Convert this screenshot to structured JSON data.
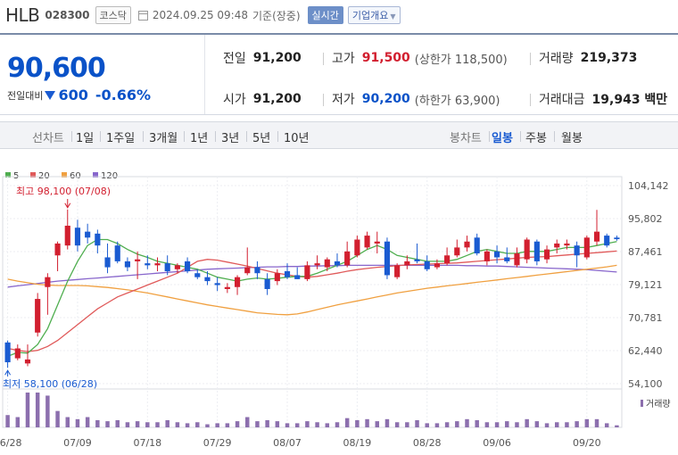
{
  "stock": {
    "name": "HLB",
    "code": "028300",
    "market": "코스닥",
    "datetime": "2024.09.25 09:48",
    "basis": "기준(장중)",
    "realtime_label": "실시간",
    "overview_label": "기업개요"
  },
  "price": {
    "current": "90,600",
    "change_label": "전일대비",
    "change_amount": "600",
    "change_pct": "-0.66%",
    "direction": "down"
  },
  "stats": {
    "prev_close_label": "전일",
    "prev_close": "91,200",
    "high_label": "고가",
    "high": "91,500",
    "upper_limit_label": "(상한가 118,500)",
    "volume_label": "거래량",
    "volume": "219,373",
    "open_label": "시가",
    "open": "91,200",
    "low_label": "저가",
    "low": "90,200",
    "lower_limit_label": "(하한가 63,900)",
    "trade_value_label": "거래대금",
    "trade_value": "19,943 백만"
  },
  "tabs": {
    "line_chart": "선차트",
    "periods": [
      "1일",
      "1주일",
      "3개월",
      "1년",
      "3년",
      "5년",
      "10년"
    ],
    "candle_chart": "봉차트",
    "candle_periods": [
      "일봉",
      "주봉",
      "월봉"
    ],
    "active_candle": "일봉"
  },
  "colors": {
    "up": "#d21f2f",
    "down": "#1a5bd1",
    "ma5": "#4fae4f",
    "ma20": "#e05a5a",
    "ma60": "#f0a040",
    "ma120": "#8866cc",
    "volume": "#8c6fae"
  },
  "chart_data": {
    "type": "candlestick",
    "legend": [
      {
        "name": "5",
        "color": "#4fae4f"
      },
      {
        "name": "20",
        "color": "#e05a5a"
      },
      {
        "name": "60",
        "color": "#f0a040"
      },
      {
        "name": "120",
        "color": "#8866cc"
      }
    ],
    "y_ticks": [
      "104,142",
      "95,802",
      "87,461",
      "79,121",
      "70,781",
      "62,440",
      "54,100"
    ],
    "y_tick_values": [
      104142,
      95802,
      87461,
      79121,
      70781,
      62440,
      54100
    ],
    "ylim": [
      54100,
      104142
    ],
    "x_ticks": [
      "06/28",
      "07/09",
      "07/18",
      "07/29",
      "08/07",
      "08/19",
      "08/28",
      "09/06",
      "09/20"
    ],
    "x_tick_index": [
      0,
      7,
      14,
      21,
      28,
      35,
      42,
      49,
      58
    ],
    "high_annotation": {
      "label": "최고 98,100 (07/08)",
      "value": 98100,
      "index": 6
    },
    "low_annotation": {
      "label": "최저 58,100 (06/28)",
      "value": 58100,
      "index": 0
    },
    "volume_label": "거래량",
    "candles": [
      [
        64500,
        65000,
        58100,
        59500
      ],
      [
        60500,
        64000,
        60000,
        63000
      ],
      [
        59200,
        64000,
        58500,
        60200
      ],
      [
        67000,
        77000,
        66000,
        75500
      ],
      [
        78500,
        82000,
        71500,
        81000
      ],
      [
        86500,
        90000,
        82500,
        89500
      ],
      [
        89000,
        98100,
        88000,
        94000
      ],
      [
        93500,
        95500,
        87500,
        89000
      ],
      [
        92500,
        94500,
        89500,
        91000
      ],
      [
        92000,
        93000,
        87000,
        89000
      ],
      [
        86000,
        89500,
        82000,
        83500
      ],
      [
        89000,
        90000,
        84500,
        85000
      ],
      [
        85000,
        86000,
        82500,
        83500
      ],
      [
        85000,
        87500,
        80500,
        85500
      ],
      [
        84500,
        86500,
        83000,
        84000
      ],
      [
        84000,
        86000,
        82500,
        84500
      ],
      [
        84500,
        86500,
        81500,
        82500
      ],
      [
        83000,
        84500,
        82000,
        84000
      ],
      [
        85000,
        86000,
        82000,
        82500
      ],
      [
        82000,
        83000,
        80500,
        81000
      ],
      [
        81000,
        82500,
        79000,
        80000
      ],
      [
        79500,
        81000,
        77500,
        79000
      ],
      [
        78000,
        79500,
        77000,
        78500
      ],
      [
        78500,
        81500,
        76500,
        81000
      ],
      [
        82000,
        88500,
        81500,
        83500
      ],
      [
        83500,
        85000,
        80500,
        82000
      ],
      [
        80500,
        82000,
        76500,
        78000
      ],
      [
        80000,
        83000,
        79000,
        82000
      ],
      [
        82500,
        84500,
        80500,
        81000
      ],
      [
        81500,
        83500,
        80500,
        80500
      ],
      [
        80500,
        85000,
        80000,
        84000
      ],
      [
        84000,
        86500,
        83000,
        84500
      ],
      [
        83500,
        86000,
        82500,
        85500
      ],
      [
        85000,
        87000,
        83500,
        84000
      ],
      [
        84000,
        90000,
        83500,
        87500
      ],
      [
        86500,
        91500,
        86000,
        90500
      ],
      [
        88500,
        92500,
        88000,
        91500
      ],
      [
        89500,
        92500,
        87000,
        90000
      ],
      [
        90000,
        91000,
        80500,
        81500
      ],
      [
        81000,
        84500,
        80500,
        84000
      ],
      [
        84000,
        86500,
        83000,
        85000
      ],
      [
        85500,
        89500,
        84500,
        85000
      ],
      [
        85000,
        86500,
        82500,
        83000
      ],
      [
        83500,
        85500,
        83000,
        84500
      ],
      [
        84500,
        88500,
        84000,
        86500
      ],
      [
        86500,
        90500,
        86000,
        88500
      ],
      [
        88500,
        91500,
        87500,
        90000
      ],
      [
        91000,
        92000,
        86500,
        87000
      ],
      [
        85000,
        88000,
        84000,
        87500
      ],
      [
        87500,
        89000,
        84500,
        86000
      ],
      [
        86000,
        88500,
        84500,
        85000
      ],
      [
        84000,
        88500,
        83500,
        87000
      ],
      [
        85500,
        91000,
        84500,
        90500
      ],
      [
        90000,
        90500,
        84000,
        85000
      ],
      [
        85500,
        89000,
        84500,
        88000
      ],
      [
        88500,
        90500,
        87000,
        89500
      ],
      [
        89000,
        90500,
        88000,
        89500
      ],
      [
        89000,
        90000,
        83500,
        86500
      ],
      [
        86000,
        91500,
        85500,
        91000
      ],
      [
        90000,
        98000,
        89000,
        92500
      ],
      [
        91500,
        92000,
        88500,
        89000
      ],
      [
        91000,
        91500,
        90200,
        90600
      ]
    ],
    "ma5": [
      61000,
      62000,
      61800,
      64000,
      68000,
      74000,
      80000,
      85000,
      89000,
      90500,
      90500,
      89500,
      88000,
      86800,
      86000,
      85000,
      84500,
      84000,
      83500,
      83000,
      82000,
      81000,
      80500,
      80000,
      80500,
      80800,
      80500,
      80700,
      81000,
      81200,
      81200,
      82000,
      83000,
      84000,
      85000,
      86500,
      88000,
      89000,
      88000,
      86500,
      86000,
      85500,
      85000,
      85000,
      85000,
      85500,
      86500,
      87500,
      88000,
      87500,
      87000,
      87000,
      87500,
      87500,
      87500,
      88000,
      88500,
      88500,
      88500,
      89000,
      89500,
      90000
    ],
    "ma20": [
      63000,
      62500,
      62200,
      62500,
      63500,
      65000,
      67000,
      69000,
      71000,
      73000,
      74500,
      76000,
      77000,
      78000,
      79000,
      80000,
      81000,
      82000,
      83500,
      85000,
      85500,
      85300,
      84800,
      84300,
      83800,
      83200,
      82600,
      82000,
      81600,
      81200,
      81000,
      81200,
      81600,
      82000,
      82500,
      82900,
      83200,
      83500,
      83700,
      83900,
      84100,
      84200,
      84300,
      84400,
      84500,
      84600,
      84800,
      85000,
      85200,
      85400,
      85600,
      85800,
      86000,
      86100,
      86200,
      86400,
      86600,
      86800,
      87000,
      87200,
      87400,
      87600
    ],
    "ma60": [
      80500,
      80000,
      79600,
      79200,
      79000,
      78900,
      78900,
      78900,
      78800,
      78600,
      78400,
      78100,
      77800,
      77400,
      77000,
      76500,
      76000,
      75500,
      75000,
      74500,
      74000,
      73600,
      73200,
      72800,
      72400,
      72000,
      71800,
      71600,
      71500,
      71700,
      72200,
      72800,
      73400,
      74000,
      74500,
      75000,
      75500,
      76000,
      76500,
      77000,
      77400,
      77800,
      78200,
      78500,
      78800,
      79100,
      79400,
      79700,
      80000,
      80300,
      80600,
      80900,
      81200,
      81500,
      81800,
      82100,
      82400,
      82700,
      83000,
      83300,
      83600,
      84000
    ],
    "ma120": [
      78500,
      78800,
      79100,
      79400,
      79700,
      80000,
      80200,
      80400,
      80600,
      80800,
      81000,
      81200,
      81400,
      81600,
      81800,
      82000,
      82200,
      82400,
      82600,
      82800,
      83000,
      83100,
      83200,
      83300,
      83400,
      83500,
      83600,
      83600,
      83700,
      83700,
      83800,
      83800,
      83900,
      83900,
      84000,
      84000,
      84000,
      84000,
      84000,
      84000,
      84000,
      84000,
      84000,
      84000,
      84000,
      84000,
      83900,
      83900,
      83800,
      83800,
      83700,
      83600,
      83500,
      83400,
      83300,
      83200,
      83100,
      83000,
      82900,
      82700,
      82500,
      82300
    ],
    "volume": [
      12,
      10,
      34,
      34,
      31,
      16,
      10,
      8,
      10,
      7,
      6,
      7,
      5,
      6,
      5,
      5,
      7,
      5,
      4,
      5,
      3,
      4,
      4,
      6,
      10,
      6,
      7,
      6,
      4,
      4,
      6,
      5,
      4,
      5,
      9,
      7,
      8,
      6,
      8,
      5,
      5,
      7,
      4,
      4,
      5,
      6,
      8,
      7,
      5,
      5,
      6,
      5,
      8,
      6,
      4,
      5,
      5,
      6,
      8,
      8,
      4,
      2
    ]
  }
}
